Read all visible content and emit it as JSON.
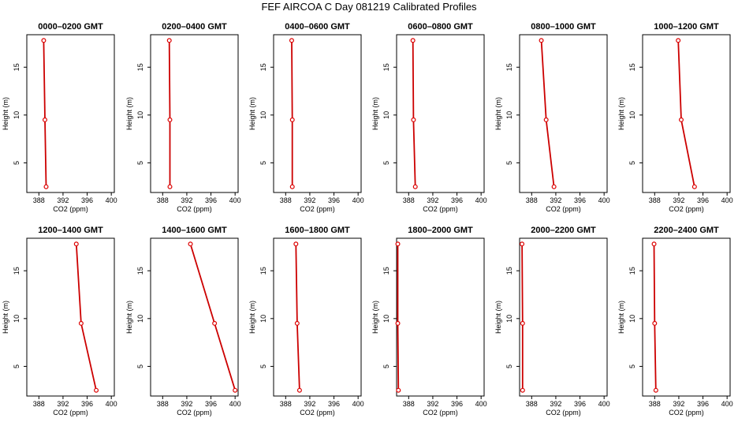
{
  "title": "FEF AIRCOA C  Day 081219  Calibrated Profiles",
  "colors": {
    "line": "#cc0000",
    "marker": "#dd0000",
    "axis": "#000000"
  },
  "chart_data": [
    {
      "type": "line",
      "title": "0000–0200 GMT",
      "xlabel": "CO2 (ppm)",
      "ylabel": "Height (m)",
      "xlim": [
        386,
        400.5
      ],
      "ylim": [
        1.9,
        18.4
      ],
      "xticks": [
        388,
        392,
        396,
        400
      ],
      "yticks": [
        5,
        10,
        15
      ],
      "x": [
        388.8,
        389.0,
        389.2
      ],
      "y": [
        17.8,
        9.5,
        2.5
      ]
    },
    {
      "type": "line",
      "title": "0200–0400 GMT",
      "xlabel": "CO2 (ppm)",
      "ylabel": "Height (m)",
      "xlim": [
        386,
        400.5
      ],
      "ylim": [
        1.9,
        18.4
      ],
      "xticks": [
        388,
        392,
        396,
        400
      ],
      "yticks": [
        5,
        10,
        15
      ],
      "x": [
        389.1,
        389.2,
        389.2
      ],
      "y": [
        17.8,
        9.5,
        2.5
      ]
    },
    {
      "type": "line",
      "title": "0400–0600 GMT",
      "xlabel": "CO2 (ppm)",
      "ylabel": "Height (m)",
      "xlim": [
        386,
        400.5
      ],
      "ylim": [
        1.9,
        18.4
      ],
      "xticks": [
        388,
        392,
        396,
        400
      ],
      "yticks": [
        5,
        10,
        15
      ],
      "x": [
        389.0,
        389.1,
        389.1
      ],
      "y": [
        17.8,
        9.5,
        2.5
      ]
    },
    {
      "type": "line",
      "title": "0600–0800 GMT",
      "xlabel": "CO2 (ppm)",
      "ylabel": "Height (m)",
      "xlim": [
        386,
        400.5
      ],
      "ylim": [
        1.9,
        18.4
      ],
      "xticks": [
        388,
        392,
        396,
        400
      ],
      "yticks": [
        5,
        10,
        15
      ],
      "x": [
        388.7,
        388.8,
        389.1
      ],
      "y": [
        17.8,
        9.5,
        2.5
      ]
    },
    {
      "type": "line",
      "title": "0800–1000 GMT",
      "xlabel": "CO2 (ppm)",
      "ylabel": "Height (m)",
      "xlim": [
        386,
        400.5
      ],
      "ylim": [
        1.9,
        18.4
      ],
      "xticks": [
        388,
        392,
        396,
        400
      ],
      "yticks": [
        5,
        10,
        15
      ],
      "x": [
        389.6,
        390.4,
        391.7
      ],
      "y": [
        17.8,
        9.5,
        2.5
      ]
    },
    {
      "type": "line",
      "title": "1000–1200 GMT",
      "xlabel": "CO2 (ppm)",
      "ylabel": "Height (m)",
      "xlim": [
        386,
        400.5
      ],
      "ylim": [
        1.9,
        18.4
      ],
      "xticks": [
        388,
        392,
        396,
        400
      ],
      "yticks": [
        5,
        10,
        15
      ],
      "x": [
        391.9,
        392.4,
        394.6
      ],
      "y": [
        17.8,
        9.5,
        2.5
      ]
    },
    {
      "type": "line",
      "title": "1200–1400 GMT",
      "xlabel": "CO2 (ppm)",
      "ylabel": "Height (m)",
      "xlim": [
        386,
        400.5
      ],
      "ylim": [
        1.9,
        18.4
      ],
      "xticks": [
        388,
        392,
        396,
        400
      ],
      "yticks": [
        5,
        10,
        15
      ],
      "x": [
        394.2,
        395.0,
        397.5
      ],
      "y": [
        17.8,
        9.5,
        2.5
      ]
    },
    {
      "type": "line",
      "title": "1400–1600 GMT",
      "xlabel": "CO2 (ppm)",
      "ylabel": "Height (m)",
      "xlim": [
        386,
        400.5
      ],
      "ylim": [
        1.9,
        18.4
      ],
      "xticks": [
        388,
        392,
        396,
        400
      ],
      "yticks": [
        5,
        10,
        15
      ],
      "x": [
        392.6,
        396.6,
        400.0
      ],
      "y": [
        17.8,
        9.5,
        2.5
      ]
    },
    {
      "type": "line",
      "title": "1600–1800 GMT",
      "xlabel": "CO2 (ppm)",
      "ylabel": "Height (m)",
      "xlim": [
        386,
        400.5
      ],
      "ylim": [
        1.9,
        18.4
      ],
      "xticks": [
        388,
        392,
        396,
        400
      ],
      "yticks": [
        5,
        10,
        15
      ],
      "x": [
        389.7,
        389.9,
        390.3
      ],
      "y": [
        17.8,
        9.5,
        2.5
      ]
    },
    {
      "type": "line",
      "title": "1800–2000 GMT",
      "xlabel": "CO2 (ppm)",
      "ylabel": "Height (m)",
      "xlim": [
        386,
        400.5
      ],
      "ylim": [
        1.9,
        18.4
      ],
      "xticks": [
        388,
        392,
        396,
        400
      ],
      "yticks": [
        5,
        10,
        15
      ],
      "x": [
        386.2,
        386.2,
        386.3
      ],
      "y": [
        17.8,
        9.5,
        2.5
      ]
    },
    {
      "type": "line",
      "title": "2000–2200 GMT",
      "xlabel": "CO2 (ppm)",
      "ylabel": "Height (m)",
      "xlim": [
        386,
        400.5
      ],
      "ylim": [
        1.9,
        18.4
      ],
      "xticks": [
        388,
        392,
        396,
        400
      ],
      "yticks": [
        5,
        10,
        15
      ],
      "x": [
        386.4,
        386.5,
        386.5
      ],
      "y": [
        17.8,
        9.5,
        2.5
      ]
    },
    {
      "type": "line",
      "title": "2200–2400 GMT",
      "xlabel": "CO2 (ppm)",
      "ylabel": "Height (m)",
      "xlim": [
        386,
        400.5
      ],
      "ylim": [
        1.9,
        18.4
      ],
      "xticks": [
        388,
        392,
        396,
        400
      ],
      "yticks": [
        5,
        10,
        15
      ],
      "x": [
        387.9,
        388.0,
        388.2
      ],
      "y": [
        17.8,
        9.5,
        2.5
      ]
    }
  ]
}
